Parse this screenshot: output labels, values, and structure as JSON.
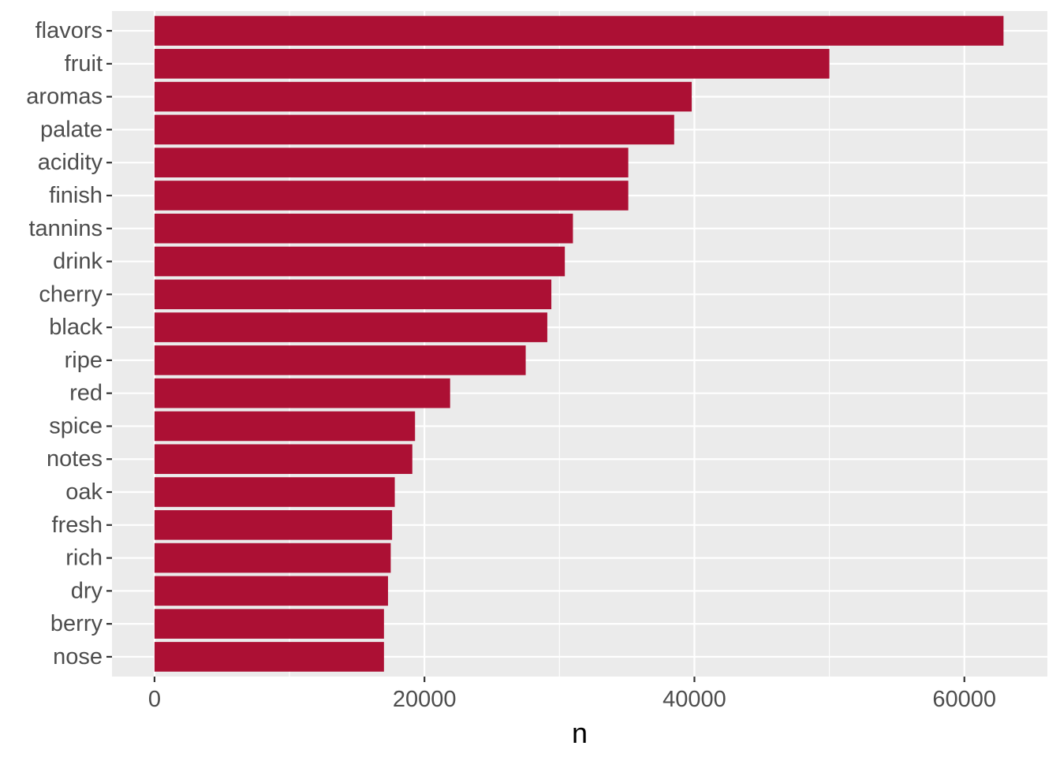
{
  "chart_data": {
    "type": "bar",
    "orientation": "horizontal",
    "title": "",
    "xlabel": "n",
    "ylabel": "",
    "xlim": [
      -3150,
      66150
    ],
    "x_ticks": [
      0,
      20000,
      40000,
      60000
    ],
    "x_tick_labels": [
      "0",
      "20000",
      "40000",
      "60000"
    ],
    "grid": true,
    "legend": "none",
    "categories": [
      "flavors",
      "fruit",
      "aromas",
      "palate",
      "acidity",
      "finish",
      "tannins",
      "drink",
      "cherry",
      "black",
      "ripe",
      "red",
      "spice",
      "notes",
      "oak",
      "fresh",
      "rich",
      "dry",
      "berry",
      "nose"
    ],
    "values": [
      62900,
      50000,
      39800,
      38500,
      35100,
      35100,
      31000,
      30400,
      29400,
      29100,
      27500,
      21900,
      19300,
      19100,
      17800,
      17600,
      17500,
      17300,
      17000,
      17000
    ],
    "bar_color": "#AC1034",
    "panel_color": "#EBEBEB",
    "grid_color": "#FFFFFF"
  }
}
